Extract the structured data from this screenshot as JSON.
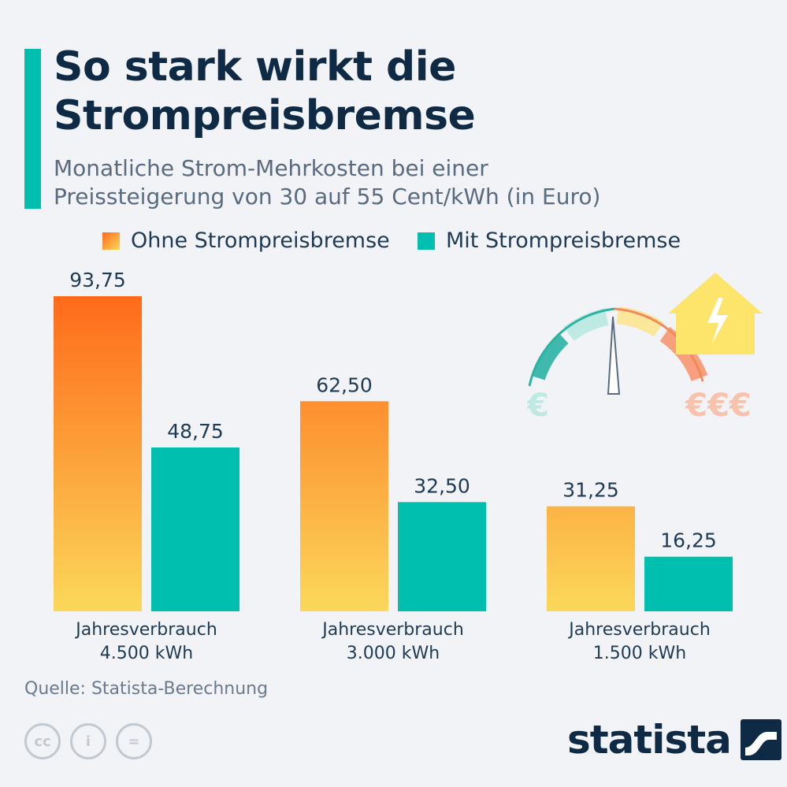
{
  "header": {
    "title_lines": [
      "So stark wirkt die",
      "Strompreisbremse"
    ],
    "subtitle_lines": [
      "Monatliche Strom-Mehrkosten bei einer",
      "Preissteigerung von 30 auf 55 Cent/kWh (in Euro)"
    ]
  },
  "legend": [
    {
      "label": "Ohne Strompreisbremse"
    },
    {
      "label": "Mit Strompreisbremse"
    }
  ],
  "chart_data": {
    "type": "bar",
    "categories": [
      [
        "Jahresverbrauch",
        "4.500 kWh"
      ],
      [
        "Jahresverbrauch",
        "3.000 kWh"
      ],
      [
        "Jahresverbrauch",
        "1.500 kWh"
      ]
    ],
    "series": [
      {
        "name": "Ohne Strompreisbremse",
        "values": [
          93.75,
          62.5,
          31.25
        ],
        "labels": [
          "93,75",
          "62,50",
          "31,25"
        ]
      },
      {
        "name": "Mit Strompreisbremse",
        "values": [
          48.75,
          32.5,
          16.25
        ],
        "labels": [
          "48,75",
          "32,50",
          "16,25"
        ]
      }
    ],
    "ylim": [
      0,
      93.75
    ],
    "grid": false,
    "legend_position": "top",
    "colors": {
      "ohne_top": "#ff6a1a",
      "ohne_bottom": "#fbd85a",
      "mit": "#00bfae"
    }
  },
  "illustration": {
    "gauge_left_label": "€",
    "gauge_right_label": "€€€",
    "icons": [
      "speedometer-gauge-icon",
      "house-lightning-icon"
    ]
  },
  "footer": {
    "source": "Quelle: Statista-Berechnung",
    "license_icons": [
      "cc",
      "i",
      "="
    ],
    "brand": "statista"
  }
}
